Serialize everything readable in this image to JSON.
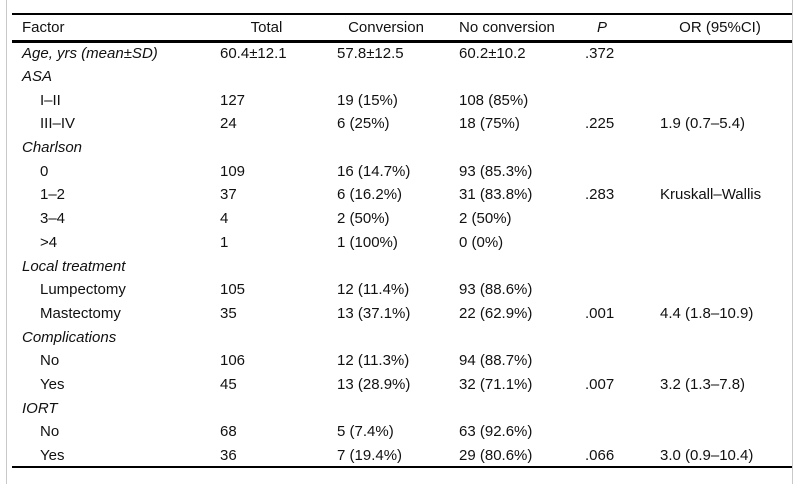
{
  "table": {
    "columns": [
      {
        "label": "Factor"
      },
      {
        "label": "Total"
      },
      {
        "label": "Conversion"
      },
      {
        "label": "No conversion"
      },
      {
        "label": "P"
      },
      {
        "label": "OR (95%CI)"
      }
    ],
    "rows": [
      {
        "style": "group",
        "factor": "Age, yrs (mean±SD)",
        "total": "60.4±12.1",
        "conversion": "57.8±12.5",
        "no_conversion": "60.2±10.2",
        "p": ".372",
        "or": ""
      },
      {
        "style": "group",
        "factor": "ASA",
        "total": "",
        "conversion": "",
        "no_conversion": "",
        "p": "",
        "or": ""
      },
      {
        "style": "sub",
        "factor": "I–II",
        "total": "127",
        "conversion": "19 (15%)",
        "no_conversion": "108 (85%)",
        "p": "",
        "or": ""
      },
      {
        "style": "sub",
        "factor": "III–IV",
        "total": "24",
        "conversion": "6 (25%)",
        "no_conversion": "18 (75%)",
        "p": ".225",
        "or": "1.9 (0.7–5.4)"
      },
      {
        "style": "group",
        "factor": "Charlson",
        "total": "",
        "conversion": "",
        "no_conversion": "",
        "p": "",
        "or": ""
      },
      {
        "style": "sub",
        "factor": "0",
        "total": "109",
        "conversion": "16 (14.7%)",
        "no_conversion": "93 (85.3%)",
        "p": "",
        "or": ""
      },
      {
        "style": "sub",
        "factor": "1–2",
        "total": "37",
        "conversion": "6 (16.2%)",
        "no_conversion": "31 (83.8%)",
        "p": ".283",
        "or": "Kruskall–Wallis"
      },
      {
        "style": "sub",
        "factor": "3–4",
        "total": "4",
        "conversion": "2 (50%)",
        "no_conversion": "2 (50%)",
        "p": "",
        "or": ""
      },
      {
        "style": "sub",
        "factor": ">4",
        "total": "1",
        "conversion": "1 (100%)",
        "no_conversion": "0 (0%)",
        "p": "",
        "or": ""
      },
      {
        "style": "group",
        "factor": "Local treatment",
        "total": "",
        "conversion": "",
        "no_conversion": "",
        "p": "",
        "or": ""
      },
      {
        "style": "sub",
        "factor": "Lumpectomy",
        "total": "105",
        "conversion": "12 (11.4%)",
        "no_conversion": "93 (88.6%)",
        "p": "",
        "or": ""
      },
      {
        "style": "sub",
        "factor": "Mastectomy",
        "total": "35",
        "conversion": "13 (37.1%)",
        "no_conversion": "22 (62.9%)",
        "p": ".001",
        "or": "4.4 (1.8–10.9)"
      },
      {
        "style": "group",
        "factor": "Complications",
        "total": "",
        "conversion": "",
        "no_conversion": "",
        "p": "",
        "or": ""
      },
      {
        "style": "sub",
        "factor": "No",
        "total": "106",
        "conversion": "12 (11.3%)",
        "no_conversion": "94 (88.7%)",
        "p": "",
        "or": ""
      },
      {
        "style": "sub",
        "factor": "Yes",
        "total": "45",
        "conversion": "13 (28.9%)",
        "no_conversion": "32 (71.1%)",
        "p": ".007",
        "or": "3.2 (1.3–7.8)"
      },
      {
        "style": "group",
        "factor": "IORT",
        "total": "",
        "conversion": "",
        "no_conversion": "",
        "p": "",
        "or": ""
      },
      {
        "style": "sub",
        "factor": "No",
        "total": "68",
        "conversion": "5 (7.4%)",
        "no_conversion": "63 (92.6%)",
        "p": "",
        "or": ""
      },
      {
        "style": "sub",
        "factor": "Yes",
        "total": "36",
        "conversion": "7 (19.4%)",
        "no_conversion": "29 (80.6%)",
        "p": ".066",
        "or": "3.0 (0.9–10.4)"
      }
    ]
  }
}
